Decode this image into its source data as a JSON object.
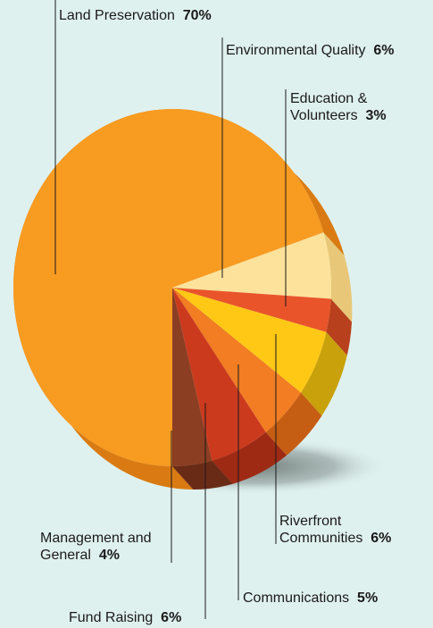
{
  "colors": {
    "background": "#dff1ef",
    "leader_line": "#1a1a1a",
    "shadow": "#7f8c8a"
  },
  "chart_data": {
    "type": "pie",
    "title": "",
    "slices": [
      {
        "label": "Land Preservation",
        "value": 70,
        "value_label": "70%",
        "color": "#f89b21",
        "side_color": "#d97b12"
      },
      {
        "label": "Environmental Quality",
        "value": 6,
        "value_label": "6%",
        "color": "#fde29b",
        "side_color": "#e8c878"
      },
      {
        "label": "Education & Volunteers",
        "value": 3,
        "value_label": "3%",
        "color": "#e9542a",
        "side_color": "#b8401c"
      },
      {
        "label": "Riverfront Communities",
        "value": 6,
        "value_label": "6%",
        "color": "#ffc815",
        "side_color": "#c9a10b"
      },
      {
        "label": "Communications",
        "value": 5,
        "value_label": "5%",
        "color": "#f27d22",
        "side_color": "#c55d13"
      },
      {
        "label": "Fund Raising",
        "value": 6,
        "value_label": "6%",
        "color": "#cc3a1e",
        "side_color": "#9e2a14"
      },
      {
        "label": "Management and General",
        "value": 4,
        "value_label": "4%",
        "color": "#8c3e22",
        "side_color": "#6a2b16"
      }
    ]
  },
  "labels": {
    "land": {
      "name": "Land Preservation",
      "pct": "70%"
    },
    "env": {
      "name": "Environmental Quality",
      "pct": "6%"
    },
    "edu": {
      "line1": "Education &",
      "line2": "Volunteers",
      "pct": "3%"
    },
    "river": {
      "line1": "Riverfront",
      "line2": "Communities",
      "pct": "6%"
    },
    "comm": {
      "name": "Communications",
      "pct": "5%"
    },
    "fund": {
      "name": "Fund Raising",
      "pct": "6%"
    },
    "mgmt": {
      "line1": "Management and",
      "line2": "General",
      "pct": "4%"
    }
  }
}
